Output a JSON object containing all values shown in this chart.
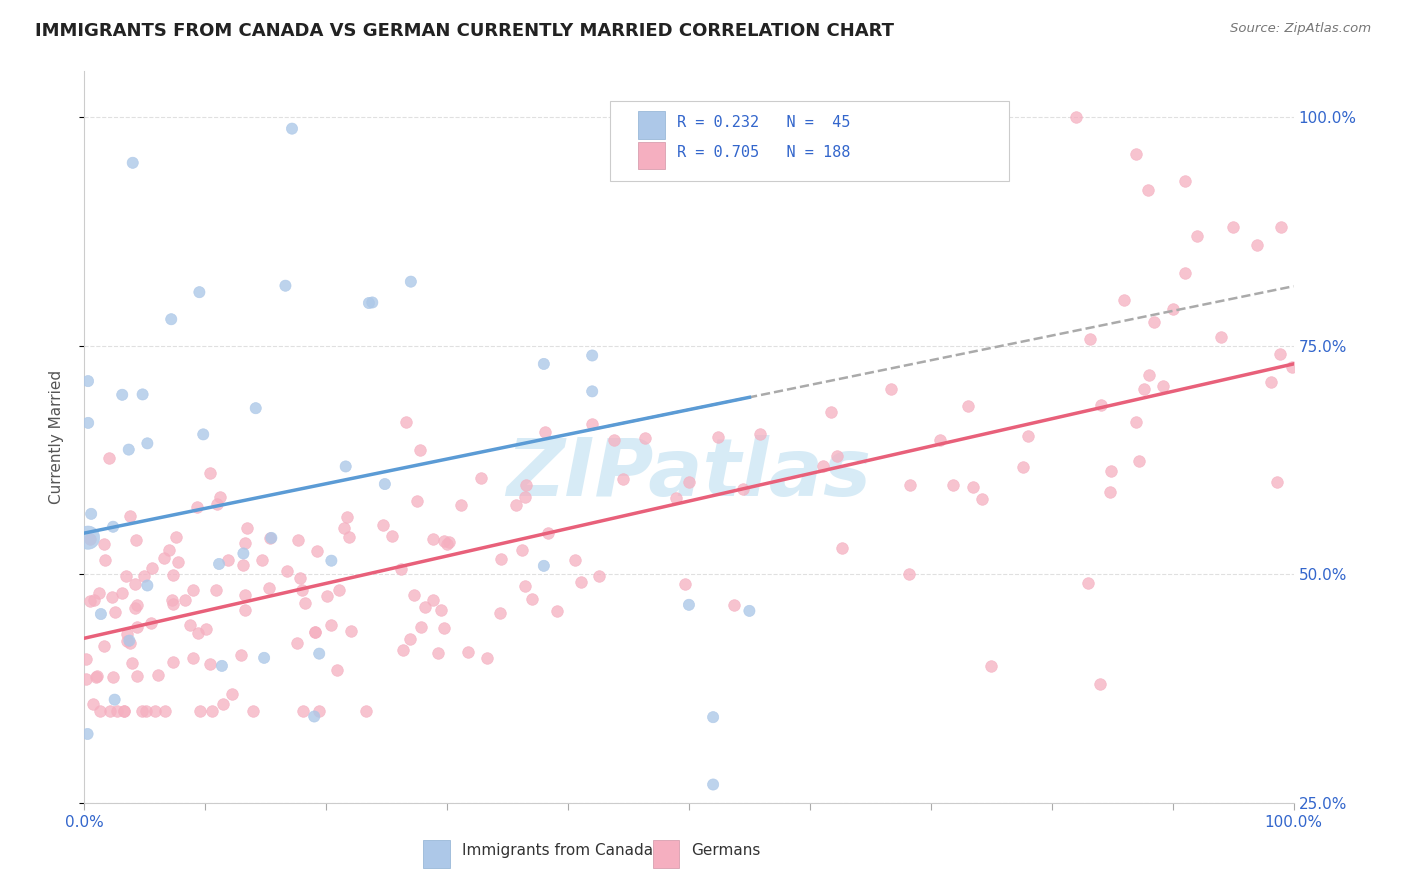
{
  "title": "IMMIGRANTS FROM CANADA VS GERMAN CURRENTLY MARRIED CORRELATION CHART",
  "source": "Source: ZipAtlas.com",
  "ylabel": "Currently Married",
  "legend_label1": "Immigrants from Canada",
  "legend_label2": "Germans",
  "R1": 0.232,
  "N1": 45,
  "R2": 0.705,
  "N2": 188,
  "color_canada": "#adc8e8",
  "color_german": "#f5afc0",
  "trendline_canada": "#5b9bd5",
  "trendline_german": "#e8607a",
  "dash_color": "#aaaaaa",
  "watermark": "ZIPatlas",
  "watermark_color": "#d0e8f5",
  "grid_color": "#e0e0e0",
  "title_fontsize": 13,
  "tick_color": "#3366cc",
  "ylabel_color": "#555555",
  "xlim": [
    0.0,
    1.0
  ],
  "ylim": [
    0.3,
    1.05
  ],
  "yticks": [
    0.25,
    0.5,
    0.75,
    1.0
  ],
  "ytick_labels": [
    "25.0%",
    "50.0%",
    "75.0%",
    "100.0%"
  ]
}
